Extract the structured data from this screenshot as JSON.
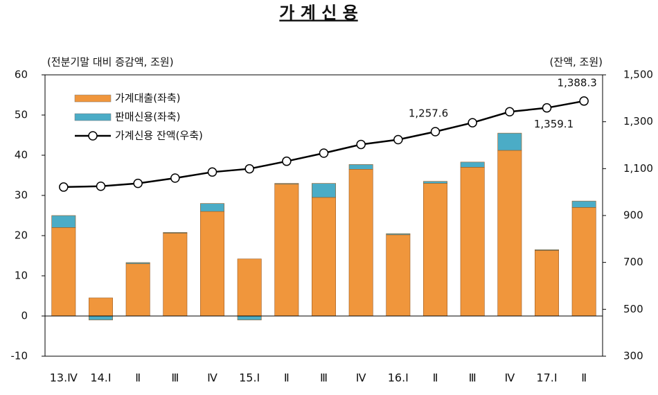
{
  "chart_data": {
    "type": "bar",
    "title": "가 계 신 용",
    "y_label": "(전분기말 대비 증감액, 조원)",
    "y2_label": "(잔액, 조원)",
    "categories": [
      "13.Ⅳ",
      "14.Ⅰ",
      "Ⅱ",
      "Ⅲ",
      "Ⅳ",
      "15.Ⅰ",
      "Ⅱ",
      "Ⅲ",
      "Ⅳ",
      "16.Ⅰ",
      "Ⅱ",
      "Ⅲ",
      "Ⅳ",
      "17.Ⅰ",
      "Ⅱ"
    ],
    "series": [
      {
        "name": "가계대출(좌축)",
        "color": "#f0963c",
        "stack": true,
        "values": [
          22,
          4.5,
          13,
          20.6,
          26,
          14.2,
          32.8,
          29.5,
          36.5,
          20.2,
          33,
          37,
          41.2,
          16.3,
          27
        ]
      },
      {
        "name": "판매신용(좌축)",
        "color": "#4bacc6",
        "stack": true,
        "values": [
          3,
          -1,
          0.3,
          0.2,
          2,
          -1,
          0.2,
          3.5,
          1.2,
          0.3,
          0.5,
          1.3,
          4.3,
          0.2,
          1.6
        ]
      },
      {
        "name": "가계신용 잔액(우축)",
        "color": "#000000",
        "type": "line",
        "axis": "y2",
        "values": [
          1021.4,
          1024.9,
          1037.0,
          1059.6,
          1085.3,
          1099.3,
          1131.5,
          1166.0,
          1203.1,
          1223.7,
          1257.6,
          1295.8,
          1342.5,
          1359.1,
          1388.3
        ],
        "value_labels": [
          null,
          null,
          null,
          null,
          null,
          null,
          null,
          null,
          null,
          null,
          "1,257.6",
          null,
          null,
          "1,359.1",
          "1,388.3"
        ]
      }
    ],
    "ylim": [
      -10,
      60
    ],
    "yticks": [
      -10,
      0,
      10,
      20,
      30,
      40,
      50,
      60
    ],
    "y2lim": [
      300,
      1500
    ],
    "y2ticks": [
      300,
      500,
      700,
      900,
      {
        "value": 1100,
        "label": "1,100"
      },
      {
        "value": 1300,
        "label": "1,300"
      },
      {
        "value": 1500,
        "label": "1,500"
      }
    ],
    "legend": "upper left"
  }
}
